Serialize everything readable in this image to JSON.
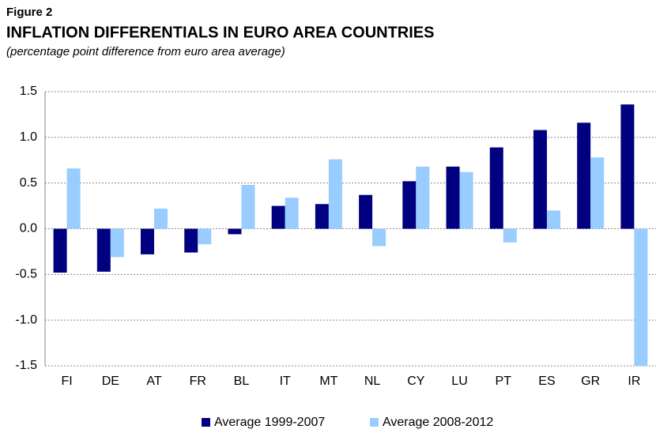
{
  "chart_data": {
    "type": "bar",
    "label": "Figure 2",
    "title": "INFLATION DIFFERENTIALS IN EURO AREA COUNTRIES",
    "subtitle": "(percentage point difference from euro area average)",
    "categories": [
      "FI",
      "DE",
      "AT",
      "FR",
      "BL",
      "IT",
      "MT",
      "NL",
      "CY",
      "LU",
      "PT",
      "ES",
      "GR",
      "IR"
    ],
    "series": [
      {
        "name": "Average 1999-2007",
        "color": "#000080",
        "values": [
          -0.48,
          -0.47,
          -0.28,
          -0.26,
          -0.06,
          0.25,
          0.27,
          0.37,
          0.52,
          0.68,
          0.89,
          1.08,
          1.16,
          1.36
        ]
      },
      {
        "name": "Average 2008-2012",
        "color": "#99ccff",
        "values": [
          0.66,
          -0.31,
          0.22,
          -0.17,
          0.48,
          0.34,
          0.76,
          -0.19,
          0.68,
          0.62,
          -0.15,
          0.2,
          0.78,
          -1.5
        ]
      }
    ],
    "ylim": [
      -1.5,
      1.5
    ],
    "yticks": [
      {
        "value": 1.5,
        "label": "1.5"
      },
      {
        "value": 1,
        "label": "1.0"
      },
      {
        "value": 0.5,
        "label": "0.5"
      },
      {
        "value": 0,
        "label": "0.0"
      },
      {
        "value": -0.5,
        "label": "-0.5"
      },
      {
        "value": -1,
        "label": "-1.0"
      },
      {
        "value": -1.5,
        "label": "-1.5"
      }
    ],
    "grid": true,
    "legend": "bottom"
  }
}
